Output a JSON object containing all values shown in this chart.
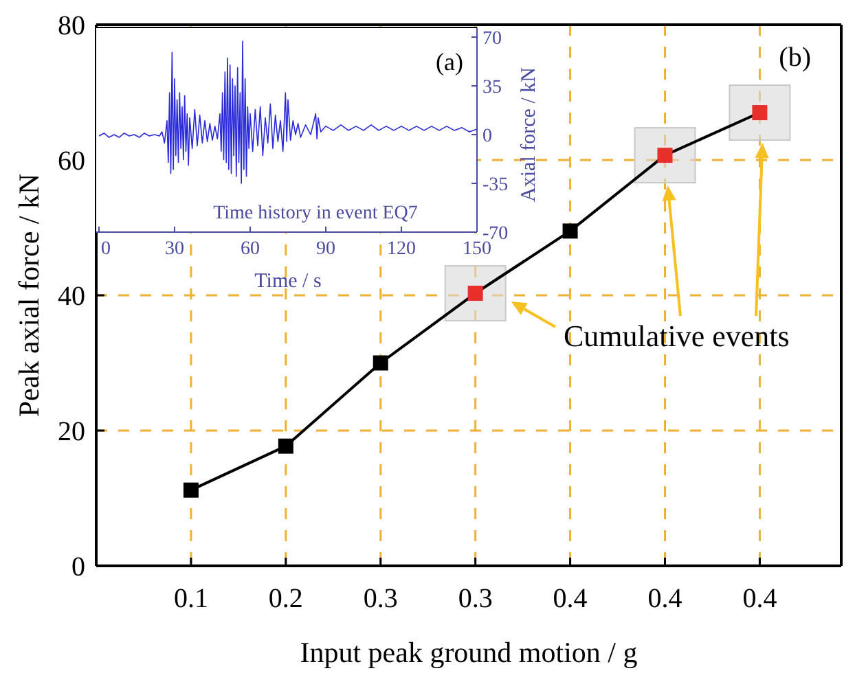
{
  "chart_data": [
    {
      "type": "line",
      "xlabel": "Input peak ground motion / g",
      "ylabel": "Peak axial force / kN",
      "categories": [
        "0.1",
        "0.2",
        "0.3",
        "0.3",
        "0.4",
        "0.4",
        "0.4"
      ],
      "series": [
        {
          "color": "#000000",
          "colors": [
            "#000000",
            "#000000",
            "#000000",
            "#e8302a",
            "#000000",
            "#e8302a",
            "#e8302a"
          ],
          "values": [
            11.2,
            17.7,
            30,
            40.3,
            49.5,
            60.7,
            67
          ]
        }
      ],
      "ylim": [
        0,
        80
      ],
      "yticks": [
        0,
        20,
        40,
        60,
        80
      ],
      "grid": true,
      "marker": "square",
      "annotations": [
        "(b)",
        "Cumulative events"
      ]
    },
    {
      "type": "line",
      "xlabel": "Time / s",
      "y2label": "Axial force / kN",
      "xlim": [
        0,
        150
      ],
      "xticks": [
        0,
        30,
        60,
        90,
        120,
        150
      ],
      "y2lim": [
        -70,
        70
      ],
      "y2ticks": [
        -70,
        -35,
        0,
        35,
        70
      ],
      "series": [
        {
          "color": "#2a2ad8",
          "axis": "y2",
          "x": [
            0,
            2,
            4,
            6,
            8,
            10,
            12,
            14,
            16,
            18,
            20,
            22,
            24,
            25,
            26,
            27,
            27.5,
            28,
            28.5,
            29,
            29.5,
            30,
            30.5,
            31,
            31.5,
            32,
            32.5,
            33,
            33.5,
            34,
            34.5,
            35,
            35.5,
            36,
            37,
            38,
            39,
            40,
            41,
            42,
            43,
            44,
            45,
            46,
            47,
            48,
            48.5,
            49,
            49.5,
            50,
            50.5,
            51,
            51.5,
            52,
            52.5,
            53,
            53.5,
            54,
            54.5,
            55,
            55.5,
            56,
            56.5,
            57,
            57.5,
            58,
            58.5,
            59,
            59.5,
            60,
            61,
            62,
            63,
            64,
            65,
            66,
            67,
            68,
            69,
            70,
            71,
            72,
            73,
            74,
            74.5,
            75,
            76,
            77,
            78,
            79,
            80,
            82,
            84,
            86,
            86.5,
            87,
            88,
            90,
            93,
            96,
            99,
            102,
            105,
            108,
            111,
            114,
            117,
            120,
            123,
            126,
            129,
            132,
            135,
            138,
            141,
            144,
            147,
            150
          ],
          "values": [
            -1,
            1,
            -2,
            0,
            -2,
            1,
            -1,
            0,
            -2,
            1,
            -1,
            0,
            -1,
            2,
            -6,
            10,
            -20,
            30,
            -28,
            59,
            -25,
            40,
            -15,
            25,
            -20,
            30,
            -10,
            20,
            -18,
            28,
            -12,
            15,
            -22,
            12,
            -10,
            18,
            -8,
            14,
            -6,
            10,
            -5,
            8,
            -4,
            6,
            -3,
            15,
            -12,
            30,
            -18,
            45,
            -20,
            55,
            -25,
            50,
            -28,
            40,
            -15,
            35,
            -30,
            48,
            -20,
            30,
            -35,
            67,
            -25,
            40,
            -30,
            20,
            -10,
            15,
            -12,
            18,
            -8,
            20,
            -15,
            12,
            -6,
            22,
            -10,
            14,
            -5,
            10,
            -12,
            30,
            -5,
            25,
            -4,
            10,
            0,
            8,
            -2,
            7,
            0,
            15,
            -3,
            12,
            2,
            6,
            3,
            7,
            3,
            6,
            3,
            7,
            3,
            6,
            3,
            6,
            3,
            6,
            3,
            6,
            3,
            6,
            3,
            5,
            2,
            4
          ]
        }
      ],
      "annotations": [
        "(a)",
        "Time history in event EQ7"
      ]
    }
  ]
}
